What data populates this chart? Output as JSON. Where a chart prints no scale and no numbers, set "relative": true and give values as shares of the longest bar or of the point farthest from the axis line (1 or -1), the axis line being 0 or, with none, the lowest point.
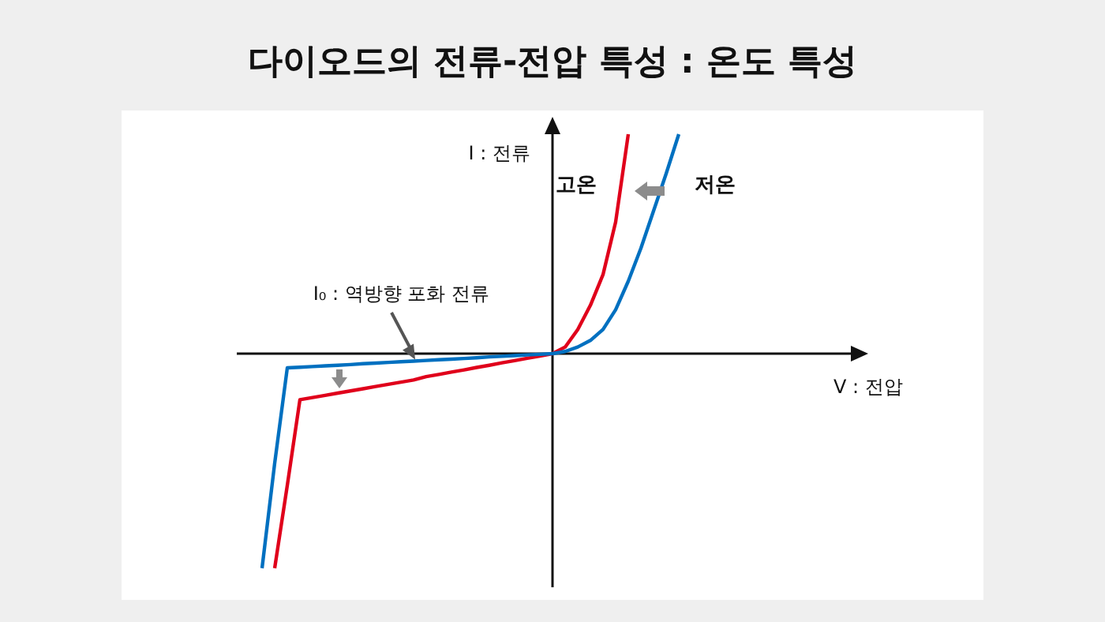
{
  "chart_data": {
    "type": "line",
    "title": "다이오드의 전류-전압 특성 : 온도 특성",
    "xlabel": "V : 전압",
    "ylabel": "I : 전류",
    "relative": true,
    "marker": "none",
    "line_style": "solid",
    "categories": [
      null,
      null,
      null,
      null,
      null,
      null,
      null,
      null,
      null,
      null,
      null,
      null,
      null,
      null,
      null,
      null,
      null,
      null,
      null,
      null,
      null,
      null,
      null,
      null,
      null,
      null,
      null,
      null,
      null,
      null,
      null,
      null,
      null,
      null,
      null,
      null,
      null,
      null,
      null,
      null,
      null,
      null,
      null,
      null,
      null,
      null,
      null,
      null,
      null,
      null,
      null
    ],
    "annotations": [
      "I₀ : 역방향 포화 전류"
    ],
    "series": [
      {
        "name": "고온",
        "color": "#e0001b",
        "values": [
          null,
          null,
          null,
          -0.978,
          -0.6,
          -0.21,
          -0.2,
          -0.19,
          -0.18,
          -0.17,
          -0.16,
          -0.15,
          -0.14,
          -0.13,
          -0.12,
          -0.105,
          -0.095,
          -0.084,
          -0.074,
          -0.063,
          -0.053,
          -0.042,
          -0.032,
          -0.021,
          -0.011,
          0,
          0.03,
          0.11,
          0.22,
          0.36,
          0.6,
          1.0,
          null,
          null,
          null,
          null,
          null,
          null,
          null,
          null,
          null,
          null,
          null,
          null,
          null,
          null,
          null,
          null,
          null,
          null,
          null
        ]
      },
      {
        "name": "저온",
        "color": "#0070c0",
        "values": [
          null,
          null,
          -0.978,
          -0.5,
          -0.065,
          -0.062,
          -0.059,
          -0.056,
          -0.053,
          -0.05,
          -0.046,
          -0.043,
          -0.04,
          -0.037,
          -0.034,
          -0.031,
          -0.028,
          -0.025,
          -0.022,
          -0.019,
          -0.015,
          -0.012,
          -0.009,
          -0.006,
          -0.003,
          0,
          0.01,
          0.03,
          0.06,
          0.11,
          0.2,
          0.33,
          0.48,
          0.65,
          0.82,
          1.0,
          null,
          null,
          null,
          null,
          null,
          null,
          null,
          null,
          null,
          null,
          null,
          null,
          null,
          null,
          null
        ]
      }
    ]
  }
}
